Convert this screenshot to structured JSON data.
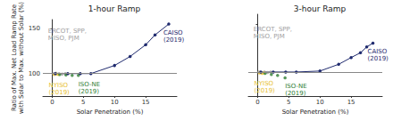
{
  "chart_data": [
    {
      "type": "line",
      "title": "1-hour Ramp",
      "x_label": "Solar Penetration (%)",
      "y_label": "Ratio of Max. Net Load Ramp Rate\nwith Solar to Max. without Solar (%)",
      "xlim": [
        -1.5,
        20
      ],
      "xticks": [
        0,
        5,
        10,
        15
      ],
      "ylim": [
        75,
        160
      ],
      "yticks": [
        100,
        150
      ],
      "reference_line": 100,
      "grid": false,
      "series": [
        {
          "name": "ERCOT, SPP,\nMISO, PJM",
          "type": "scatter",
          "marker": "circle",
          "color": "#9e9e9e",
          "x": [
            0.2,
            0.6,
            1.1,
            1.6,
            2.1
          ],
          "values": [
            100,
            100.5,
            100,
            99.5,
            100
          ]
        },
        {
          "name": "NYISO\n(2019)",
          "type": "scatter",
          "marker": "circle",
          "color": "#e8c02f",
          "x": [
            0.3,
            0.7,
            1.0
          ],
          "values": [
            99,
            99.5,
            99
          ]
        },
        {
          "name": "ISO-NE\n(2019)",
          "type": "scatter",
          "marker": "circle",
          "color": "#2e7d32",
          "x": [
            1.2,
            2.2,
            3.2,
            4.2
          ],
          "values": [
            99,
            98.5,
            98,
            98
          ]
        },
        {
          "name": "CAISO\n(2019)",
          "type": "line",
          "marker": "circle",
          "color": "#1f2a6e",
          "x": [
            0.5,
            2.5,
            4.5,
            6.2,
            10,
            12.5,
            15,
            16.5,
            18.7
          ],
          "values": [
            100,
            100,
            100,
            100,
            109,
            119,
            132,
            143,
            155
          ]
        }
      ]
    },
    {
      "type": "line",
      "title": "3-hour Ramp",
      "x_label": "Solar Penetration (%)",
      "xlim": [
        -1.5,
        20
      ],
      "xticks": [
        0,
        5,
        10,
        15
      ],
      "ylim": [
        75,
        160
      ],
      "yticks": [
        100,
        150
      ],
      "reference_line": 100,
      "grid": false,
      "tick_labels": "x",
      "series": [
        {
          "name": "ERCOT, SPP,\nMISO, PJM",
          "type": "scatter",
          "marker": "circle",
          "color": "#9e9e9e",
          "x": [
            0.2,
            0.6,
            1.1,
            1.6,
            2.1
          ],
          "values": [
            100,
            99.5,
            100,
            99.5,
            100
          ]
        },
        {
          "name": "NYISO\n(2019)",
          "type": "scatter",
          "marker": "circle",
          "color": "#e8c02f",
          "x": [
            0.3,
            0.7,
            1.0
          ],
          "values": [
            99,
            98.5,
            99
          ]
        },
        {
          "name": "ISO-NE\n(2019)",
          "type": "scatter",
          "marker": "circle",
          "color": "#2e7d32",
          "x": [
            1.2,
            2.2,
            3.2,
            4.4
          ],
          "values": [
            98.5,
            97.5,
            96.5,
            94
          ]
        },
        {
          "name": "CAISO\n(2019)",
          "type": "line",
          "marker": "circle",
          "color": "#1f2a6e",
          "x": [
            0.5,
            2.5,
            4.5,
            6.2,
            10,
            13,
            15,
            16.5,
            17.5,
            18.5
          ],
          "values": [
            100,
            100,
            100,
            100,
            101,
            108,
            115,
            120,
            126,
            130
          ]
        }
      ]
    }
  ]
}
